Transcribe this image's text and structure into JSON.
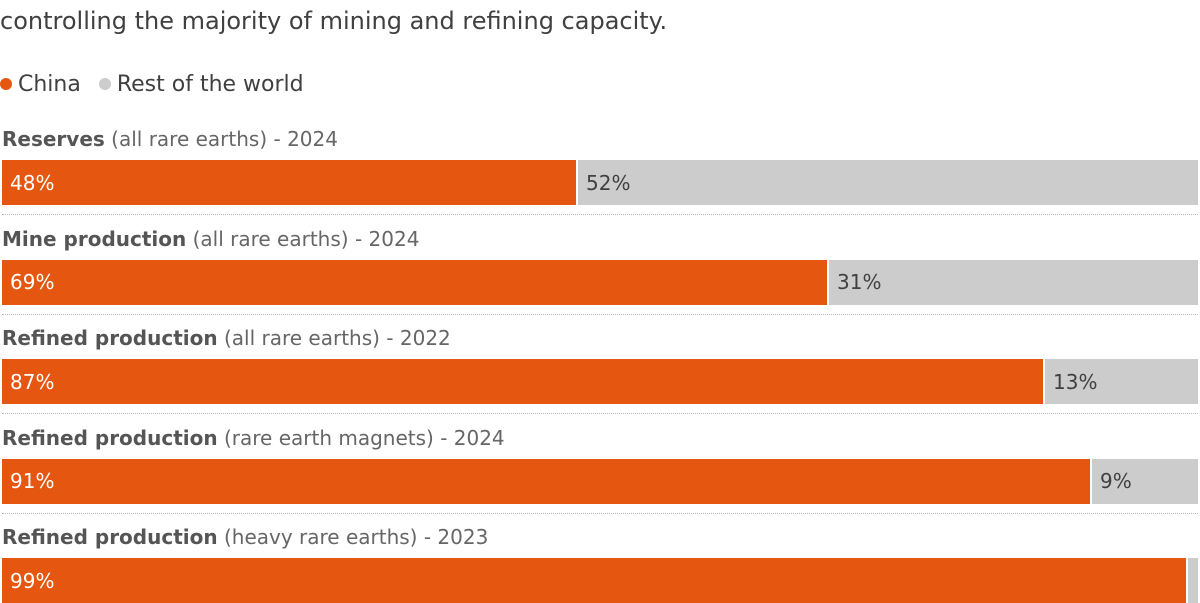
{
  "subtitle": "controlling the majority of mining and refining capacity.",
  "legend": [
    {
      "label": "China",
      "color": "#e55710"
    },
    {
      "label": "Rest of the world",
      "color": "#cccccc"
    }
  ],
  "chart_data": {
    "type": "bar",
    "orientation": "horizontal",
    "stacked": true,
    "percent_scale": [
      0,
      100
    ],
    "grid": false,
    "legend_position": "top-left",
    "categories": [
      {
        "bold": "Reserves",
        "rest": " (all rare earths) - 2024"
      },
      {
        "bold": "Mine production",
        "rest": " (all rare earths) - 2024"
      },
      {
        "bold": "Refined production",
        "rest": " (all rare earths) - 2022"
      },
      {
        "bold": "Refined production",
        "rest": " (rare earth magnets) - 2024"
      },
      {
        "bold": "Refined production",
        "rest": " (heavy rare earths) - 2023"
      }
    ],
    "series": [
      {
        "name": "China",
        "color": "#e55710",
        "values": [
          48,
          69,
          87,
          91,
          99
        ],
        "labels": [
          "48%",
          "69%",
          "87%",
          "91%",
          "99%"
        ]
      },
      {
        "name": "Rest of the world",
        "color": "#cccccc",
        "values": [
          52,
          31,
          13,
          9,
          1
        ],
        "labels": [
          "52%",
          "31%",
          "13%",
          "9%",
          ""
        ]
      }
    ]
  }
}
